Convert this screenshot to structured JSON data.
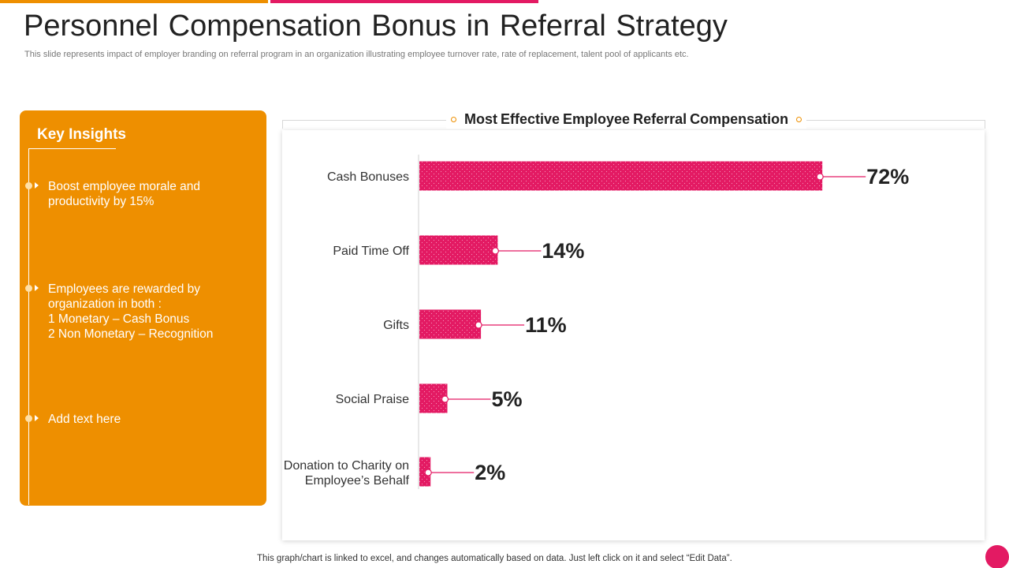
{
  "header": {
    "title": "Personnel Compensation Bonus in Referral Strategy",
    "subtitle": "This slide represents impact of employer branding on referral program in an organization illustrating employee turnover rate, rate of replacement, talent pool of applicants etc."
  },
  "insights": {
    "title": "Key Insights",
    "items": [
      {
        "text": "Boost employee morale and productivity by 15%"
      },
      {
        "text": "Employees are rewarded by organization in both :\n1 Monetary – Cash Bonus\n2 Non Monetary – Recognition"
      },
      {
        "text": "Add text here"
      }
    ]
  },
  "chart_data": {
    "type": "bar",
    "orientation": "horizontal",
    "title": "Most Effective Employee Referral Compensation",
    "categories": [
      "Cash Bonuses",
      "Paid Time Off",
      "Gifts",
      "Social Praise",
      "Donation to Charity on Employee’s Behalf"
    ],
    "values": [
      72,
      14,
      11,
      5,
      2
    ],
    "value_labels": [
      "72%",
      "14%",
      "11%",
      "5%",
      "2%"
    ],
    "xlim": [
      0,
      100
    ],
    "grid": false,
    "legend": "none",
    "bar_color": "#e31a63"
  },
  "footer": {
    "note": "This graph/chart is linked to excel,  and changes automatically based on data. Just left click on it and select “Edit Data”."
  },
  "colors": {
    "accent_orange": "#ee8f00",
    "accent_pink": "#e31a63"
  }
}
